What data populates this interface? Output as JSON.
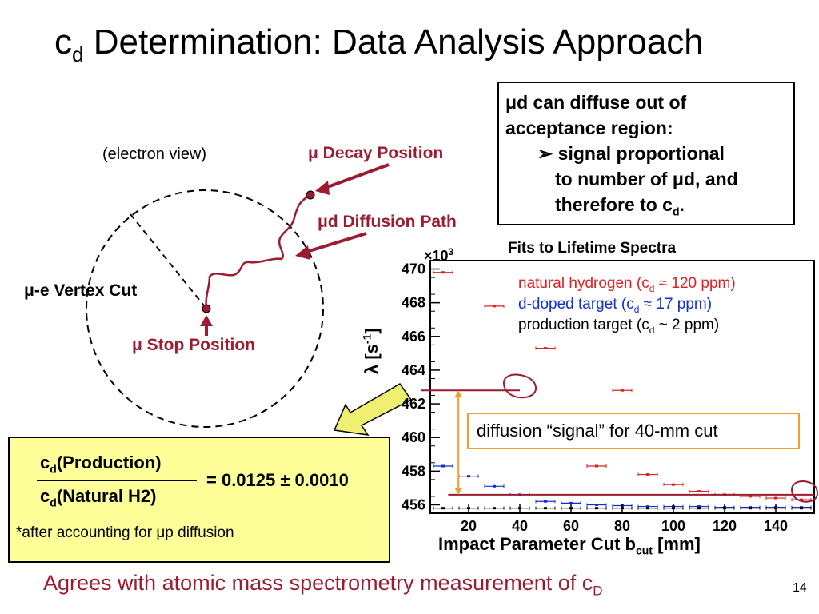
{
  "slide": {
    "title_main": "c",
    "title_sub": "d",
    "title_rest": " Determination: Data Analysis Approach",
    "page_number": "14",
    "footer_text": "Agrees with atomic mass spectrometry measurement of c",
    "footer_sub": "D"
  },
  "diagram": {
    "view_label": "(electron view)",
    "decay_label": "μ Decay Position",
    "diffusion_label": "μd Diffusion Path",
    "vertex_label": "μ-e Vertex Cut",
    "stop_label": "μ Stop Position"
  },
  "infobox": {
    "line1": "μd can diffuse out of",
    "line2": "acceptance region:",
    "bullet": "➢",
    "line3": "signal proportional",
    "line4": "to number of μd, and",
    "line5_pre": "therefore to c",
    "line5_sub": "d",
    "line5_post": "."
  },
  "result": {
    "num_c": "c",
    "num_sub": "d",
    "num_rest": "(Production)",
    "den_c": "c",
    "den_sub": "d",
    "den_rest": "(Natural H2)",
    "value": "= 0.0125 ± 0.0010",
    "note_pre": "*after accounting for ",
    "note_mu": "μ",
    "note_post": "p diffusion"
  },
  "colors": {
    "title_red": "#9b1b30",
    "natural": "#e02020",
    "deuterium": "#1030d0",
    "production": "#000000",
    "result_bg": "#ffff99",
    "arrow_fill": "#f0f070",
    "signal_border": "#f0a030"
  },
  "chart_data": {
    "type": "scatter",
    "title": "Fits to Lifetime Spectra",
    "ylabel_pre": "λ [s",
    "ylabel_sup": "-1",
    "ylabel_post": "]",
    "y_multiplier_pre": "×10",
    "y_multiplier_sup": "3",
    "xlabel_pre": "Impact Parameter Cut b",
    "xlabel_sub": "cut",
    "xlabel_post": " [mm]",
    "xlim": [
      5,
      155
    ],
    "ylim": [
      455.5,
      470.5
    ],
    "x_ticks": [
      20,
      40,
      60,
      80,
      100,
      120,
      140
    ],
    "y_ticks": [
      456,
      458,
      460,
      462,
      464,
      466,
      468,
      470
    ],
    "legend": [
      {
        "pre": "natural hydrogen (c",
        "sub": "d",
        "post": " ≈ 120 ppm)",
        "color": "#e02020"
      },
      {
        "pre": "d-doped target (c",
        "sub": "d",
        "post": " ≈ 17 ppm)",
        "color": "#1030d0"
      },
      {
        "pre": "production target (c",
        "sub": "d",
        "post": " ~ 2 ppm)",
        "color": "#000000"
      }
    ],
    "annotation": "diffusion “signal” for 40-mm cut",
    "series": [
      {
        "name": "natural hydrogen",
        "color": "#e02020",
        "x": [
          10,
          30,
          50,
          80,
          70,
          90,
          100,
          110,
          120,
          130,
          140,
          150
        ],
        "y": [
          469.8,
          467.8,
          465.3,
          462.8,
          458.3,
          457.8,
          457.2,
          456.8,
          456.6,
          456.5,
          456.4,
          456.3
        ]
      },
      {
        "name": "d-doped target",
        "color": "#1030d0",
        "x": [
          10,
          20,
          30,
          40,
          50,
          60,
          70,
          80,
          90,
          100,
          110,
          120,
          130,
          140,
          150
        ],
        "y": [
          458.3,
          457.7,
          457.1,
          456.6,
          456.2,
          456.1,
          456.0,
          455.95,
          455.9,
          455.9,
          455.9,
          455.85,
          455.85,
          455.85,
          455.85
        ]
      },
      {
        "name": "production target",
        "color": "#000000",
        "x": [
          10,
          20,
          30,
          40,
          50,
          60,
          70,
          80,
          90,
          100,
          110,
          120,
          130,
          140,
          150
        ],
        "y": [
          455.8,
          455.8,
          455.8,
          455.8,
          455.8,
          455.8,
          455.8,
          455.8,
          455.8,
          455.8,
          455.8,
          455.8,
          455.8,
          455.8,
          455.8
        ]
      }
    ]
  }
}
